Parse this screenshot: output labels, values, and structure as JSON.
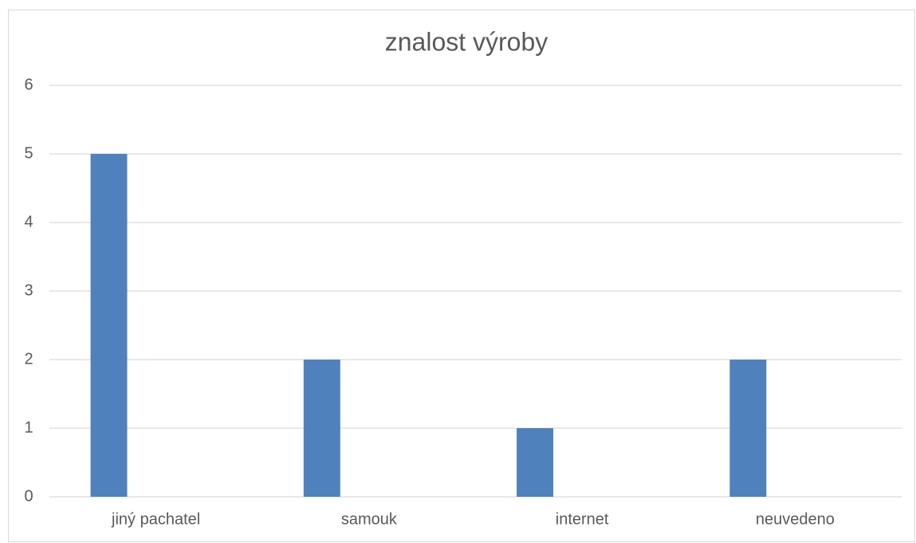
{
  "chart_data": {
    "type": "bar",
    "title": "znalost výroby",
    "categories": [
      "jiný pachatel",
      "samouk",
      "internet",
      "neuvedeno"
    ],
    "values": [
      5,
      2,
      1,
      2
    ],
    "color": "#4f81bd",
    "ylim": [
      0,
      6
    ],
    "yticks": [
      0,
      1,
      2,
      3,
      4,
      5,
      6
    ],
    "grid": true
  }
}
